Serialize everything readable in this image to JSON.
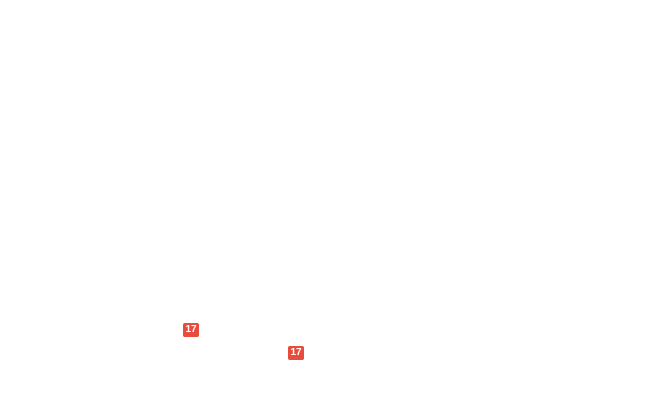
{
  "page": {
    "background_color": "#ffffff"
  },
  "badges": [
    {
      "label": "17",
      "background_color": "#e74c3c",
      "text_color": "#ffffff"
    },
    {
      "label": "17",
      "background_color": "#e74c3c",
      "text_color": "#ffffff"
    }
  ]
}
